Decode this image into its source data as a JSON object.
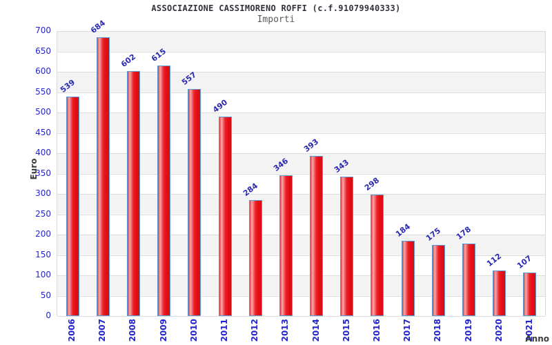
{
  "header": {
    "title": "ASSOCIAZIONE CASSIMORENO ROFFI (c.f.91079940333)",
    "subtitle": "Importi"
  },
  "axes": {
    "y_label": "Euro",
    "x_label": "Anno",
    "y_ticks": [
      700,
      650,
      600,
      550,
      500,
      450,
      400,
      350,
      300,
      250,
      200,
      150,
      100,
      50,
      0
    ]
  },
  "chart_data": {
    "type": "bar",
    "title": "ASSOCIAZIONE CASSIMORENO ROFFI (c.f.91079940333)",
    "subtitle": "Importi",
    "xlabel": "Anno",
    "ylabel": "Euro",
    "categories": [
      "2006",
      "2007",
      "2008",
      "2009",
      "2010",
      "2011",
      "2012",
      "2013",
      "2014",
      "2015",
      "2016",
      "2017",
      "2018",
      "2019",
      "2020",
      "2021"
    ],
    "values": [
      539,
      684,
      602,
      615,
      557,
      490,
      284,
      346,
      393,
      343,
      298,
      184,
      175,
      178,
      112,
      107
    ],
    "ylim": [
      0,
      700
    ],
    "ytick_step": 50,
    "grid": true,
    "legend_position": "none",
    "bar_labels_shown": true,
    "colors": {
      "bar_fill": "#ed1c24",
      "bar_highlight": "#f3abac",
      "bar_border": "#5b9bd5",
      "value_label": "#2a2ab0",
      "tick_label": "#2424cc",
      "axis_title": "#3c3c3c",
      "band_stripe": "#f3f3f3",
      "gridline": "#dcdcdc",
      "title_text": "#32323c",
      "subtitle_text": "#5a5a5a"
    }
  }
}
